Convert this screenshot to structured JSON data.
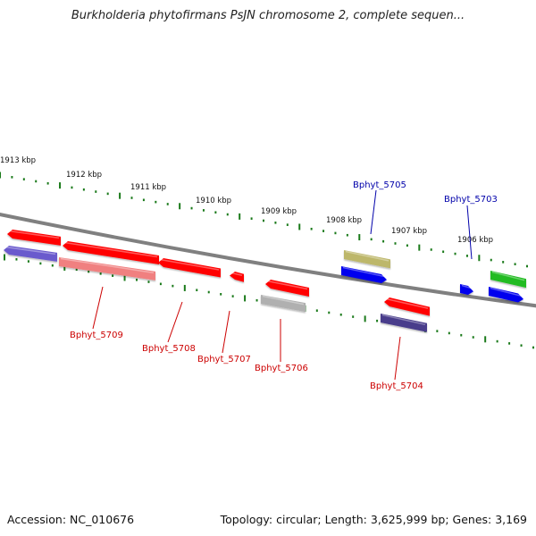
{
  "title": "Burkholderia phytofirmans PsJN chromosome 2, complete sequen...",
  "footer": {
    "accession": "Accession: NC_010676",
    "summary": "Topology: circular; Length: 3,625,999 bp; Genes: 3,169"
  },
  "scale_labels": [
    "1913 kbp",
    "1912 kbp",
    "1911 kbp",
    "1910 kbp",
    "1909 kbp",
    "1908 kbp",
    "1907 kbp",
    "1906 kbp"
  ],
  "gene_labels": {
    "Bphyt_5709": "Bphyt_5709",
    "Bphyt_5708": "Bphyt_5708",
    "Bphyt_5707": "Bphyt_5707",
    "Bphyt_5706": "Bphyt_5706",
    "Bphyt_5705": "Bphyt_5705",
    "Bphyt_5704": "Bphyt_5704",
    "Bphyt_5703": "Bphyt_5703"
  },
  "colors": {
    "red": "#ff0000",
    "pink": "#f08080",
    "blue": "#0000ee",
    "slate_blue": "#6a5acd",
    "dark_slate_blue": "#483d8b",
    "khaki": "#bdb76b",
    "grey": "#b0b0b0",
    "green": "#22bb22",
    "backbone": "#808080",
    "tick_green": "#1a7a1a",
    "label_red": "#cc0000",
    "label_blue": "#0000aa"
  }
}
